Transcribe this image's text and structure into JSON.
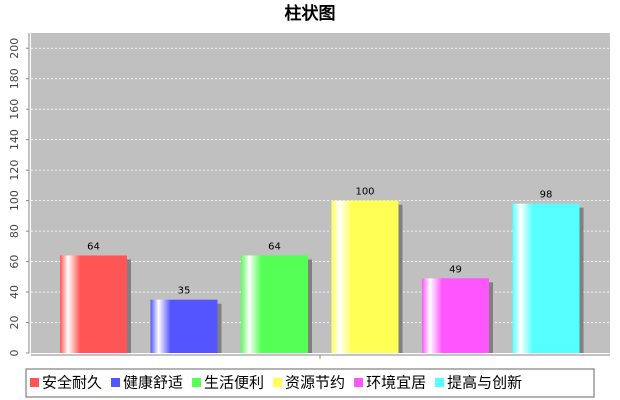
{
  "chart_data": {
    "type": "bar",
    "title": "柱状图",
    "series": [
      {
        "name": "安全耐久",
        "color": "#ff5555",
        "values": [
          64
        ]
      },
      {
        "name": "健康舒适",
        "color": "#5555ff",
        "values": [
          35
        ]
      },
      {
        "name": "生活便利",
        "color": "#55ff55",
        "values": [
          64
        ]
      },
      {
        "name": "资源节约",
        "color": "#ffff55",
        "values": [
          100
        ]
      },
      {
        "name": "环境宜居",
        "color": "#ff55ff",
        "values": [
          49
        ]
      },
      {
        "name": "提高与创新",
        "color": "#55ffff",
        "values": [
          98
        ]
      }
    ],
    "ylim": [
      0,
      210
    ],
    "yticks": [
      0,
      20,
      40,
      60,
      80,
      100,
      120,
      140,
      160,
      180,
      200
    ],
    "grid": true,
    "legend": "bottom"
  }
}
